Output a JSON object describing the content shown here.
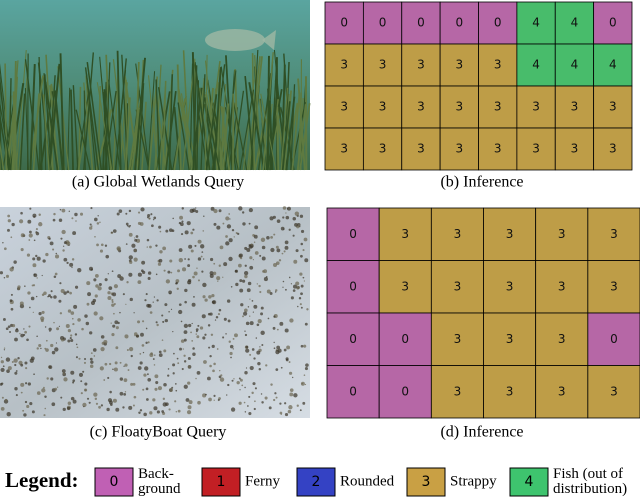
{
  "panels": [
    {
      "caption": "(a) Global Wetlands Query"
    },
    {
      "caption": "(b) Inference",
      "grid": [
        [
          0,
          0,
          0,
          0,
          0,
          4,
          4,
          0
        ],
        [
          3,
          3,
          3,
          3,
          3,
          4,
          4,
          4
        ],
        [
          3,
          3,
          3,
          3,
          3,
          3,
          3,
          3
        ],
        [
          3,
          3,
          3,
          3,
          3,
          3,
          3,
          3
        ]
      ]
    },
    {
      "caption": "(c) FloatyBoat Query"
    },
    {
      "caption": "(d) Inference",
      "grid": [
        [
          0,
          3,
          3,
          3,
          3,
          3
        ],
        [
          0,
          3,
          3,
          3,
          3,
          3
        ],
        [
          0,
          0,
          3,
          3,
          3,
          0
        ],
        [
          0,
          0,
          3,
          3,
          3,
          3
        ]
      ]
    }
  ],
  "legend": {
    "title": "Legend:",
    "items": [
      {
        "id": 0,
        "label": [
          "Back-",
          "ground"
        ],
        "color": "#c060b4"
      },
      {
        "id": 1,
        "label": [
          "Ferny"
        ],
        "color": "#c21f24"
      },
      {
        "id": 2,
        "label": [
          "Rounded"
        ],
        "color": "#3442c4"
      },
      {
        "id": 3,
        "label": [
          "Strappy"
        ],
        "color": "#c9a044"
      },
      {
        "id": 4,
        "label": [
          "Fish (out of",
          "distribution)"
        ],
        "color": "#3ec46e"
      }
    ]
  }
}
